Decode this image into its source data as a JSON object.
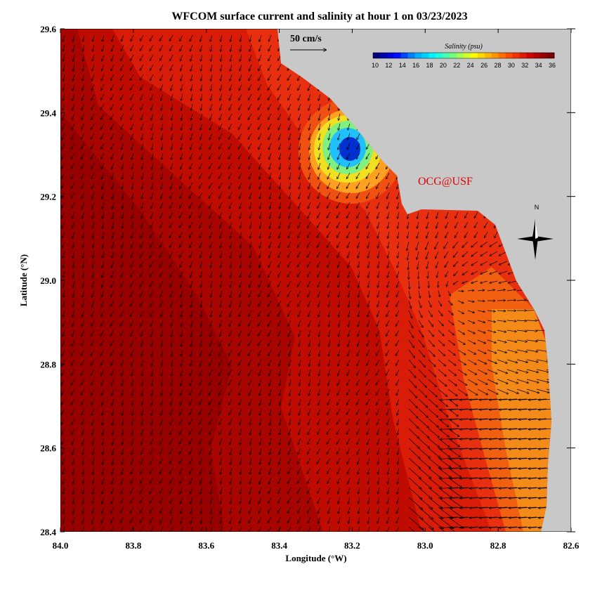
{
  "title": "WFCOM surface current and salinity at hour 1 on 03/23/2023",
  "x_axis": {
    "label": "Longitude (°W)",
    "ticks": [
      "84.0",
      "83.8",
      "83.6",
      "83.4",
      "83.2",
      "83.0",
      "82.8",
      "82.6"
    ]
  },
  "y_axis": {
    "label": "Latitude (°N)",
    "ticks": [
      "29.6",
      "29.4",
      "29.2",
      "29.0",
      "28.8",
      "28.6",
      "28.4"
    ]
  },
  "colorbar": {
    "title": "Salinity (psu)",
    "labels": [
      "10",
      "12",
      "14",
      "16",
      "18",
      "20",
      "22",
      "24",
      "26",
      "28",
      "30",
      "32",
      "34",
      "36"
    ]
  },
  "scale_label": "50 cm/s",
  "credit": "OCG@USF",
  "compass": "N"
}
